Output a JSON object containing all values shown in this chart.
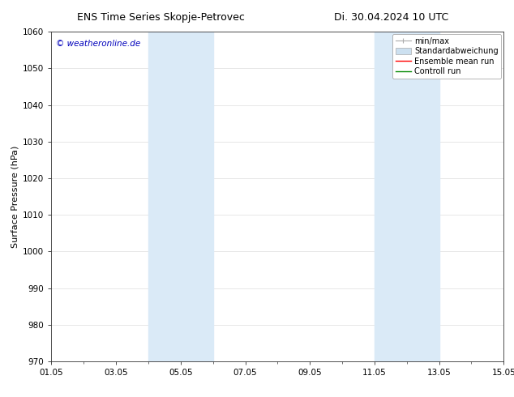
{
  "title_left": "ENS Time Series Skopje-Petrovec",
  "title_right": "Di. 30.04.2024 10 UTC",
  "ylabel": "Surface Pressure (hPa)",
  "ylim": [
    970,
    1060
  ],
  "yticks": [
    970,
    980,
    990,
    1000,
    1010,
    1020,
    1030,
    1040,
    1050,
    1060
  ],
  "xtick_labels": [
    "01.05",
    "03.05",
    "05.05",
    "07.05",
    "09.05",
    "11.05",
    "13.05",
    "15.05"
  ],
  "xtick_positions": [
    0,
    2,
    4,
    6,
    8,
    10,
    12,
    14
  ],
  "x_min": 0,
  "x_max": 14,
  "shaded_regions": [
    {
      "x_start": 3.0,
      "x_end": 5.0,
      "color": "#daeaf7"
    },
    {
      "x_start": 10.0,
      "x_end": 12.0,
      "color": "#daeaf7"
    }
  ],
  "watermark": "© weatheronline.de",
  "watermark_color": "#0000bb",
  "watermark_fontsize": 7.5,
  "bg_color": "#ffffff",
  "grid_color": "#dddddd",
  "title_fontsize": 9,
  "axis_label_fontsize": 8,
  "tick_fontsize": 7.5,
  "legend_fontsize": 7,
  "minmax_color": "#aaaaaa",
  "std_color": "#cce0f0",
  "ensemble_color": "#ff0000",
  "control_color": "#008800"
}
